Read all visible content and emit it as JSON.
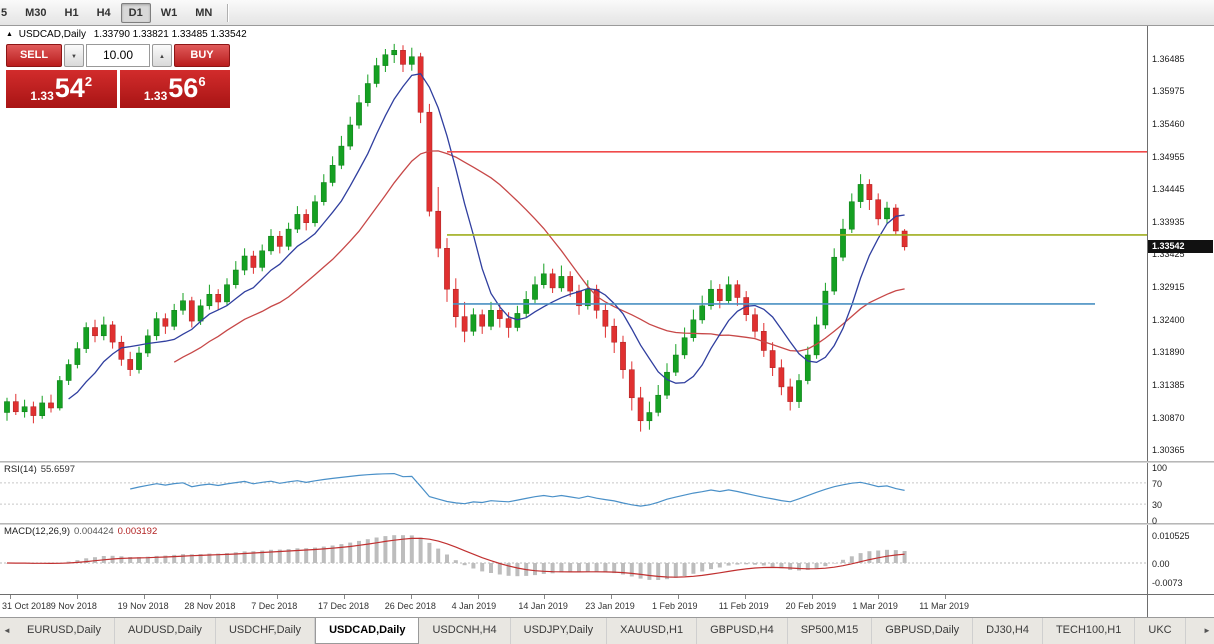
{
  "toolbar": {
    "timeframes": [
      "5",
      "M30",
      "H1",
      "H4",
      "D1",
      "W1",
      "MN"
    ],
    "active": "D1"
  },
  "chart": {
    "symbol_title": "USDCAD,Daily",
    "ohlc_text": "1.33790 1.33821 1.33485 1.33542"
  },
  "icons": {
    "collapse": "▲",
    "dropdown_down": "▼",
    "spinner_up": "▲",
    "tab_left": "◄",
    "tab_right": "►"
  },
  "trade": {
    "sell_label": "SELL",
    "buy_label": "BUY",
    "volume": "10.00",
    "sell_price": {
      "small": "1.33",
      "big": "54",
      "sup": "2"
    },
    "buy_price": {
      "small": "1.33",
      "big": "56",
      "sup": "6"
    }
  },
  "price_axis": {
    "labels": [
      "1.36485",
      "1.35975",
      "1.35460",
      "1.34955",
      "1.34445",
      "1.33935",
      "1.33425",
      "1.32915",
      "1.32400",
      "1.31890",
      "1.31385",
      "1.30870",
      "1.30365"
    ],
    "current": "1.33542"
  },
  "time_axis": {
    "labels": [
      "31 Oct 2018",
      "9 Nov 2018",
      "19 Nov 2018",
      "28 Nov 2018",
      "7 Dec 2018",
      "17 Dec 2018",
      "26 Dec 2018",
      "4 Jan 2019",
      "14 Jan 2019",
      "23 Jan 2019",
      "1 Feb 2019",
      "11 Feb 2019",
      "20 Feb 2019",
      "1 Mar 2019",
      "11 Mar 2019"
    ]
  },
  "rsi": {
    "label": "RSI(14)",
    "value": "55.6597",
    "levels": [
      "100",
      "70",
      "30",
      "0"
    ]
  },
  "macd": {
    "label": "MACD(12,26,9)",
    "value_main": "0.004424",
    "value_signal": "0.003192",
    "levels": [
      "0.010525",
      "0.00",
      "-0.0073"
    ]
  },
  "tabs": {
    "items": [
      "EURUSD,Daily",
      "AUDUSD,Daily",
      "USDCHF,Daily",
      "USDCAD,Daily",
      "USDCNH,H4",
      "USDJPY,Daily",
      "XAUUSD,H1",
      "GBPUSD,H4",
      "SP500,M15",
      "GBPUSD,Daily",
      "DJ30,H4",
      "TECH100,H1",
      "UKC"
    ],
    "active": "USDCAD,Daily"
  },
  "chart_data": {
    "type": "candlestick",
    "symbol": "USDCAD",
    "timeframe": "Daily",
    "title": "USDCAD,Daily",
    "price_scale": {
      "top": 1.37,
      "bottom": 1.3019
    },
    "colors": {
      "bull": "#15a022",
      "bull_edge": "#0a7a14",
      "bear": "#e03030",
      "bear_edge": "#a81f1f"
    },
    "indicators": {
      "ma_fast": {
        "type": "sma",
        "period": 8,
        "color": "#303f9f"
      },
      "ma_slow": {
        "type": "sma",
        "period": 20,
        "color": "#c74848"
      },
      "rsi": {
        "period": 14,
        "color": "#4a90c8",
        "levels": [
          70,
          30
        ]
      },
      "macd": {
        "fast": 12,
        "slow": 26,
        "signal": 9,
        "hist_color": "#bdbdbd",
        "signal_color": "#c03030"
      }
    },
    "hlines": [
      {
        "price": 1.3503,
        "color": "#f04a4a",
        "x1": 0.39,
        "x2": 1.0
      },
      {
        "price": 1.3373,
        "color": "#9fae1f",
        "x1": 0.39,
        "x2": 1.0
      },
      {
        "price": 1.3265,
        "color": "#4a90c2",
        "x1": 0.395,
        "x2": 0.955
      }
    ],
    "candles": [
      [
        1.3095,
        1.3118,
        1.3082,
        1.3112
      ],
      [
        1.3112,
        1.3124,
        1.3091,
        1.3096
      ],
      [
        1.3096,
        1.3115,
        1.3087,
        1.3104
      ],
      [
        1.3104,
        1.3112,
        1.3078,
        1.309
      ],
      [
        1.309,
        1.3121,
        1.3085,
        1.311
      ],
      [
        1.311,
        1.3123,
        1.3095,
        1.3102
      ],
      [
        1.3102,
        1.3152,
        1.3098,
        1.3145
      ],
      [
        1.3145,
        1.3178,
        1.3138,
        1.317
      ],
      [
        1.317,
        1.3205,
        1.3164,
        1.3195
      ],
      [
        1.3195,
        1.3236,
        1.3188,
        1.3228
      ],
      [
        1.3228,
        1.324,
        1.3205,
        1.3215
      ],
      [
        1.3215,
        1.3245,
        1.3208,
        1.3232
      ],
      [
        1.3232,
        1.3238,
        1.3195,
        1.3205
      ],
      [
        1.3205,
        1.3215,
        1.3168,
        1.3178
      ],
      [
        1.3178,
        1.319,
        1.3152,
        1.3162
      ],
      [
        1.3162,
        1.3198,
        1.3156,
        1.3188
      ],
      [
        1.3188,
        1.3225,
        1.3182,
        1.3215
      ],
      [
        1.3215,
        1.3252,
        1.3208,
        1.3242
      ],
      [
        1.3242,
        1.325,
        1.3218,
        1.323
      ],
      [
        1.323,
        1.3265,
        1.3224,
        1.3255
      ],
      [
        1.3255,
        1.3282,
        1.3248,
        1.327
      ],
      [
        1.327,
        1.3276,
        1.3228,
        1.3238
      ],
      [
        1.3238,
        1.3272,
        1.3232,
        1.3262
      ],
      [
        1.3262,
        1.3295,
        1.3256,
        1.328
      ],
      [
        1.328,
        1.3288,
        1.3256,
        1.3268
      ],
      [
        1.3268,
        1.3305,
        1.3262,
        1.3295
      ],
      [
        1.3295,
        1.3332,
        1.3289,
        1.3318
      ],
      [
        1.3318,
        1.3352,
        1.331,
        1.334
      ],
      [
        1.334,
        1.3348,
        1.3312,
        1.3322
      ],
      [
        1.3322,
        1.3358,
        1.3316,
        1.3348
      ],
      [
        1.3348,
        1.3382,
        1.3342,
        1.3371
      ],
      [
        1.3371,
        1.3379,
        1.3344,
        1.3355
      ],
      [
        1.3355,
        1.3392,
        1.3349,
        1.3382
      ],
      [
        1.3382,
        1.3418,
        1.3376,
        1.3405
      ],
      [
        1.3405,
        1.3413,
        1.338,
        1.3392
      ],
      [
        1.3392,
        1.3435,
        1.3386,
        1.3425
      ],
      [
        1.3425,
        1.3468,
        1.3419,
        1.3455
      ],
      [
        1.3455,
        1.3496,
        1.3449,
        1.3482
      ],
      [
        1.3482,
        1.3528,
        1.3476,
        1.3512
      ],
      [
        1.3512,
        1.3558,
        1.3506,
        1.3545
      ],
      [
        1.3545,
        1.3592,
        1.3539,
        1.358
      ],
      [
        1.358,
        1.3624,
        1.3574,
        1.361
      ],
      [
        1.361,
        1.365,
        1.3604,
        1.3638
      ],
      [
        1.3638,
        1.3664,
        1.3628,
        1.3655
      ],
      [
        1.3655,
        1.3672,
        1.3642,
        1.3662
      ],
      [
        1.3662,
        1.367,
        1.3628,
        1.364
      ],
      [
        1.364,
        1.3666,
        1.363,
        1.3652
      ],
      [
        1.3652,
        1.3658,
        1.3548,
        1.3565
      ],
      [
        1.3565,
        1.3578,
        1.3402,
        1.341
      ],
      [
        1.341,
        1.3448,
        1.3338,
        1.3352
      ],
      [
        1.3352,
        1.3368,
        1.3268,
        1.3288
      ],
      [
        1.3288,
        1.3305,
        1.3228,
        1.3245
      ],
      [
        1.3245,
        1.3268,
        1.3205,
        1.3222
      ],
      [
        1.3222,
        1.3258,
        1.3215,
        1.3248
      ],
      [
        1.3248,
        1.3256,
        1.3218,
        1.323
      ],
      [
        1.323,
        1.3268,
        1.3224,
        1.3255
      ],
      [
        1.3255,
        1.3264,
        1.3228,
        1.3242
      ],
      [
        1.3242,
        1.3252,
        1.3212,
        1.3228
      ],
      [
        1.3228,
        1.3262,
        1.3222,
        1.325
      ],
      [
        1.325,
        1.3285,
        1.3244,
        1.3272
      ],
      [
        1.3272,
        1.3308,
        1.3266,
        1.3295
      ],
      [
        1.3295,
        1.3328,
        1.3289,
        1.3312
      ],
      [
        1.3312,
        1.332,
        1.3282,
        1.329
      ],
      [
        1.329,
        1.3325,
        1.3284,
        1.3308
      ],
      [
        1.3308,
        1.3316,
        1.3276,
        1.3285
      ],
      [
        1.3285,
        1.3295,
        1.3248,
        1.3262
      ],
      [
        1.3262,
        1.3302,
        1.3256,
        1.3288
      ],
      [
        1.3288,
        1.3295,
        1.3242,
        1.3255
      ],
      [
        1.3255,
        1.3265,
        1.3212,
        1.323
      ],
      [
        1.323,
        1.3242,
        1.3188,
        1.3205
      ],
      [
        1.3205,
        1.3215,
        1.3148,
        1.3162
      ],
      [
        1.3162,
        1.3175,
        1.3098,
        1.3118
      ],
      [
        1.3118,
        1.3135,
        1.3065,
        1.3082
      ],
      [
        1.3082,
        1.3112,
        1.3068,
        1.3095
      ],
      [
        1.3095,
        1.3138,
        1.3089,
        1.3122
      ],
      [
        1.3122,
        1.3172,
        1.3116,
        1.3158
      ],
      [
        1.3158,
        1.3202,
        1.3152,
        1.3185
      ],
      [
        1.3185,
        1.3228,
        1.3179,
        1.3212
      ],
      [
        1.3212,
        1.3256,
        1.3206,
        1.324
      ],
      [
        1.324,
        1.3278,
        1.3234,
        1.3262
      ],
      [
        1.3262,
        1.3302,
        1.3256,
        1.3288
      ],
      [
        1.3288,
        1.3296,
        1.3258,
        1.327
      ],
      [
        1.327,
        1.3308,
        1.3264,
        1.3295
      ],
      [
        1.3295,
        1.3302,
        1.3262,
        1.3275
      ],
      [
        1.3275,
        1.3285,
        1.3238,
        1.3248
      ],
      [
        1.3248,
        1.3258,
        1.3212,
        1.3222
      ],
      [
        1.3222,
        1.3235,
        1.3182,
        1.3192
      ],
      [
        1.3192,
        1.3205,
        1.3152,
        1.3165
      ],
      [
        1.3165,
        1.3178,
        1.3122,
        1.3135
      ],
      [
        1.3135,
        1.3148,
        1.3098,
        1.3112
      ],
      [
        1.3112,
        1.3155,
        1.3102,
        1.3145
      ],
      [
        1.3145,
        1.3198,
        1.3139,
        1.3185
      ],
      [
        1.3185,
        1.3245,
        1.3179,
        1.3232
      ],
      [
        1.3232,
        1.3298,
        1.3226,
        1.3285
      ],
      [
        1.3285,
        1.3352,
        1.3279,
        1.3338
      ],
      [
        1.3338,
        1.3398,
        1.3332,
        1.3382
      ],
      [
        1.3382,
        1.3438,
        1.3376,
        1.3425
      ],
      [
        1.3425,
        1.3468,
        1.3415,
        1.3452
      ],
      [
        1.3452,
        1.346,
        1.3412,
        1.3428
      ],
      [
        1.3428,
        1.3438,
        1.3388,
        1.3398
      ],
      [
        1.3398,
        1.3425,
        1.339,
        1.3415
      ],
      [
        1.3415,
        1.3421,
        1.3372,
        1.3379
      ],
      [
        1.3379,
        1.33821,
        1.33485,
        1.33542
      ]
    ]
  }
}
